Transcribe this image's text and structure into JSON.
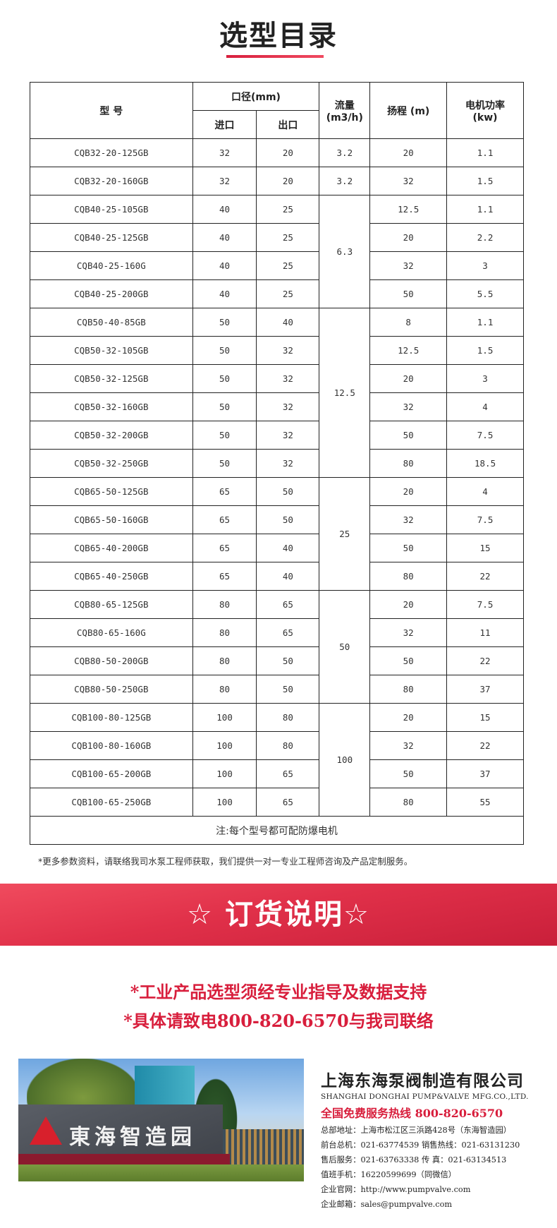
{
  "title": "选型目录",
  "table": {
    "headers": {
      "model": "型  号",
      "diameter": "口径(mm)",
      "inlet": "进口",
      "outlet": "出口",
      "flow": "流量\n(m3/h)",
      "head": "扬程 (m)",
      "power": "电机功率\n(kw)"
    },
    "rows": [
      {
        "model": "CQB32-20-125GB",
        "inlet": "32",
        "outlet": "20",
        "head": "20",
        "power": "1.1"
      },
      {
        "model": "CQB32-20-160GB",
        "inlet": "32",
        "outlet": "20",
        "head": "32",
        "power": "1.5"
      },
      {
        "model": "CQB40-25-105GB",
        "inlet": "40",
        "outlet": "25",
        "head": "12.5",
        "power": "1.1"
      },
      {
        "model": "CQB40-25-125GB",
        "inlet": "40",
        "outlet": "25",
        "head": "20",
        "power": "2.2"
      },
      {
        "model": "CQB40-25-160G",
        "inlet": "40",
        "outlet": "25",
        "head": "32",
        "power": "3"
      },
      {
        "model": "CQB40-25-200GB",
        "inlet": "40",
        "outlet": "25",
        "head": "50",
        "power": "5.5"
      },
      {
        "model": "CQB50-40-85GB",
        "inlet": "50",
        "outlet": "40",
        "head": "8",
        "power": "1.1"
      },
      {
        "model": "CQB50-32-105GB",
        "inlet": "50",
        "outlet": "32",
        "head": "12.5",
        "power": "1.5"
      },
      {
        "model": "CQB50-32-125GB",
        "inlet": "50",
        "outlet": "32",
        "head": "20",
        "power": "3"
      },
      {
        "model": "CQB50-32-160GB",
        "inlet": "50",
        "outlet": "32",
        "head": "32",
        "power": "4"
      },
      {
        "model": "CQB50-32-200GB",
        "inlet": "50",
        "outlet": "32",
        "head": "50",
        "power": "7.5"
      },
      {
        "model": "CQB50-32-250GB",
        "inlet": "50",
        "outlet": "32",
        "head": "80",
        "power": "18.5"
      },
      {
        "model": "CQB65-50-125GB",
        "inlet": "65",
        "outlet": "50",
        "head": "20",
        "power": "4"
      },
      {
        "model": "CQB65-50-160GB",
        "inlet": "65",
        "outlet": "50",
        "head": "32",
        "power": "7.5"
      },
      {
        "model": "CQB65-40-200GB",
        "inlet": "65",
        "outlet": "40",
        "head": "50",
        "power": "15"
      },
      {
        "model": "CQB65-40-250GB",
        "inlet": "65",
        "outlet": "40",
        "head": "80",
        "power": "22"
      },
      {
        "model": "CQB80-65-125GB",
        "inlet": "80",
        "outlet": "65",
        "head": "20",
        "power": "7.5"
      },
      {
        "model": "CQB80-65-160G",
        "inlet": "80",
        "outlet": "65",
        "head": "32",
        "power": "11"
      },
      {
        "model": "CQB80-50-200GB",
        "inlet": "80",
        "outlet": "50",
        "head": "50",
        "power": "22"
      },
      {
        "model": "CQB80-50-250GB",
        "inlet": "80",
        "outlet": "50",
        "head": "80",
        "power": "37"
      },
      {
        "model": "CQB100-80-125GB",
        "inlet": "100",
        "outlet": "80",
        "head": "20",
        "power": "15"
      },
      {
        "model": "CQB100-80-160GB",
        "inlet": "100",
        "outlet": "80",
        "head": "32",
        "power": "22"
      },
      {
        "model": "CQB100-65-200GB",
        "inlet": "100",
        "outlet": "65",
        "head": "50",
        "power": "37"
      },
      {
        "model": "CQB100-65-250GB",
        "inlet": "100",
        "outlet": "65",
        "head": "80",
        "power": "55"
      }
    ],
    "flow_groups": [
      {
        "value": "3.2",
        "rows": 1
      },
      {
        "value": "3.2",
        "rows": 1
      },
      {
        "value": "6.3",
        "rows": 4
      },
      {
        "value": "12.5",
        "rows": 6
      },
      {
        "value": "25",
        "rows": 4
      },
      {
        "value": "50",
        "rows": 4
      },
      {
        "value": "100",
        "rows": 4
      }
    ],
    "note": "注:每个型号都可配防爆电机"
  },
  "subnote": "*更多参数资料，请联络我司水泵工程师获取，我们提供一对一专业工程师咨询及产品定制服务。",
  "banner": "☆ 订货说明☆",
  "order_lines": [
    "*工业产品选型须经专业指导及数据支持",
    "*具体请致电800-820-6570与我司联络"
  ],
  "photo_sign": "東海智造园",
  "company": {
    "name": "上海东海泵阀制造有限公司",
    "name_en": "SHANGHAI DONGHAI PUMP&VALVE MFG.CO.,LTD.",
    "hotline": "全国免费服务热线  800-820-6570",
    "lines": [
      "总部地址：上海市松江区三浜路428号（东海智造园）",
      "前台总机：021-63774539   销售热线：021-63131230",
      "售后服务：021-63763338   传      真：021-63134513",
      "值班手机：16220599699（同微信）",
      "企业官网：http://www.pumpvalve.com",
      "企业邮箱：sales@pumpvalve.com"
    ]
  },
  "colors": {
    "accent": "#d81e3c",
    "banner": "#e03049"
  }
}
